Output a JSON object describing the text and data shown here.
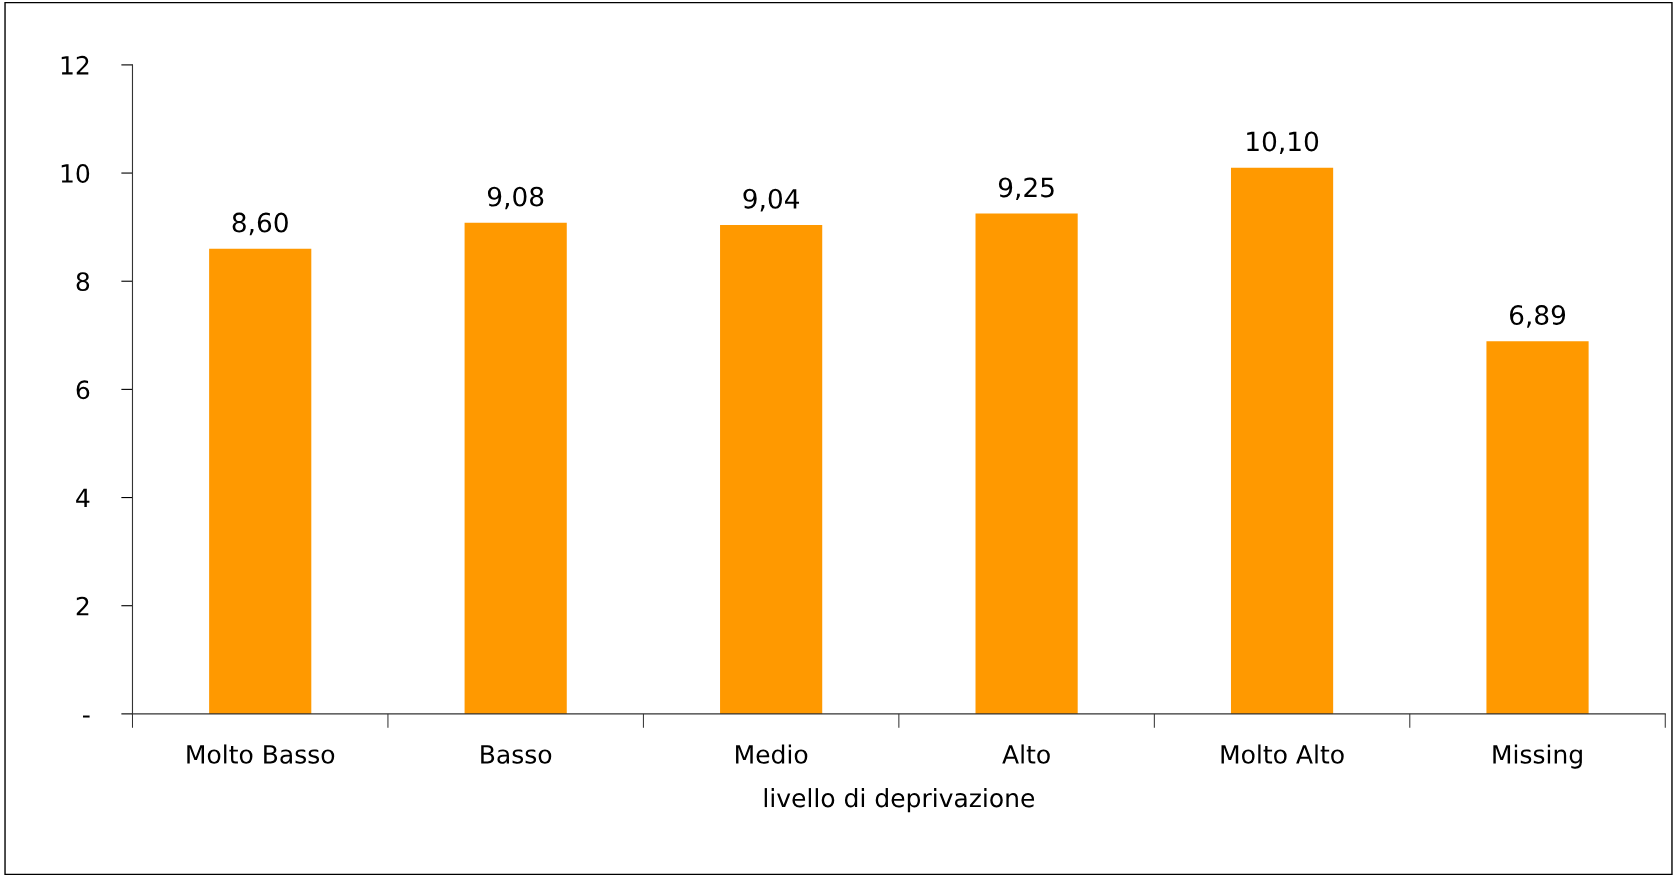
{
  "chart_data": {
    "type": "bar",
    "xlabel": "livello di deprivazione",
    "categories": [
      "Molto Basso",
      "Basso",
      "Medio",
      "Alto",
      "Molto Alto",
      "Missing"
    ],
    "values": [
      8.6,
      9.08,
      9.04,
      9.25,
      10.1,
      6.89
    ],
    "value_labels": [
      "8,60",
      "9,08",
      "9,04",
      "9,25",
      "10,10",
      "6,89"
    ],
    "color": "#ff9900",
    "ylim": [
      0,
      12
    ],
    "yticks": [
      {
        "value": 0,
        "label": "-"
      },
      2,
      4,
      6,
      8,
      10,
      12
    ],
    "grid": false,
    "legend": false
  }
}
